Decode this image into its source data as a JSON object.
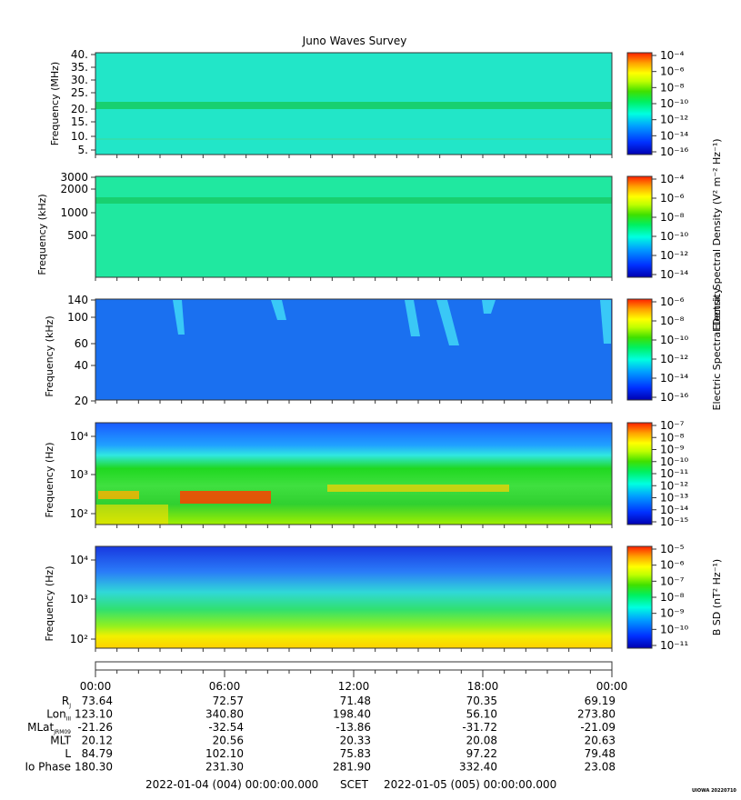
{
  "title": "Juno Waves Survey",
  "colors": {
    "spectral": [
      "#0000c8",
      "#0028ff",
      "#0090ff",
      "#00e6ff",
      "#00ff90",
      "#20e020",
      "#a0ff00",
      "#ffff00",
      "#ffb000",
      "#ff3000"
    ],
    "panel_bg": [
      "#22e6c8",
      "#20e6a8",
      "#1a70f0",
      "#20d040",
      "#30b8f0"
    ]
  },
  "chart_data": [
    {
      "type": "heatmap",
      "ylabel": "Frequency (MHz)",
      "yticks": [
        "40.",
        "35.",
        "30.",
        "25.",
        "20.",
        "15.",
        "10.",
        "5."
      ],
      "ylim": [
        3.5,
        41
      ],
      "colorbar_ticks": [
        "10⁻⁴",
        "10⁻⁶",
        "10⁻⁸",
        "10⁻¹⁰",
        "10⁻¹²",
        "10⁻¹⁴",
        "10⁻¹⁶"
      ],
      "features": [
        "bright band near 21 MHz"
      ]
    },
    {
      "type": "heatmap",
      "ylabel": "Frequency (kHz)",
      "yticks": [
        "3000",
        "2000",
        "1000",
        "500"
      ],
      "yscale": "log",
      "colorbar_ticks": [
        "10⁻⁴",
        "10⁻⁶",
        "10⁻⁸",
        "10⁻¹⁰",
        "10⁻¹²",
        "10⁻¹⁴"
      ],
      "colorbar_label": "Electric Spectral Density (V² m⁻² Hz⁻¹)",
      "features": [
        "band near 1500 kHz"
      ]
    },
    {
      "type": "heatmap",
      "ylabel": "Frequency (kHz)",
      "yticks": [
        "140",
        "100",
        "60",
        "40",
        "20"
      ],
      "colorbar_ticks": [
        "10⁻⁶",
        "10⁻⁸",
        "10⁻¹⁰",
        "10⁻¹²",
        "10⁻¹⁴",
        "10⁻¹⁶"
      ],
      "colorbar_label": "Electric Spectral Density",
      "features": [
        "bursts near 03:00, 08:30, 14:00-16:00"
      ]
    },
    {
      "type": "heatmap",
      "ylabel": "Frequency (Hz)",
      "yticks": [
        "10⁴",
        "10³",
        "10²"
      ],
      "yscale": "log",
      "colorbar_ticks": [
        "10⁻⁷",
        "10⁻⁸",
        "10⁻⁹",
        "10⁻¹⁰",
        "10⁻¹¹",
        "10⁻¹²",
        "10⁻¹³",
        "10⁻¹⁴",
        "10⁻¹⁵"
      ]
    },
    {
      "type": "heatmap",
      "ylabel": "Frequency (Hz)",
      "yticks": [
        "10⁴",
        "10³",
        "10²"
      ],
      "yscale": "log",
      "colorbar_ticks": [
        "10⁻⁵",
        "10⁻⁶",
        "10⁻⁷",
        "10⁻⁸",
        "10⁻⁹",
        "10⁻¹⁰",
        "10⁻¹¹"
      ],
      "colorbar_label": "B SD (nT² Hz⁻¹)"
    }
  ],
  "time_axis": {
    "ticks": [
      "00:00",
      "06:00",
      "12:00",
      "18:00",
      "00:00"
    ],
    "rows": [
      {
        "label": "R",
        "sub": "J",
        "values": [
          "73.64",
          "72.57",
          "71.48",
          "70.35",
          "69.19"
        ]
      },
      {
        "label": "Lon",
        "sub": "III",
        "values": [
          "123.10",
          "340.80",
          "198.40",
          "56.10",
          "273.80"
        ]
      },
      {
        "label": "MLat",
        "sub": "JRM09",
        "values": [
          "-21.26",
          "-32.54",
          "-13.86",
          "-31.72",
          "-21.09"
        ]
      },
      {
        "label": "MLT",
        "sub": "",
        "values": [
          "20.12",
          "20.56",
          "20.33",
          "20.08",
          "20.63"
        ]
      },
      {
        "label": "L",
        "sub": "",
        "values": [
          "84.79",
          "102.10",
          "75.83",
          "97.22",
          "79.48"
        ]
      },
      {
        "label": "Io Phase",
        "sub": "",
        "values": [
          "180.30",
          "231.30",
          "281.90",
          "332.40",
          "23.08"
        ]
      }
    ],
    "start": "2022-01-04 (004) 00:00:00.000",
    "scet": "SCET",
    "end": "2022-01-05 (005) 00:00:00.000"
  },
  "footer_tag": "UIOWA 20220710"
}
